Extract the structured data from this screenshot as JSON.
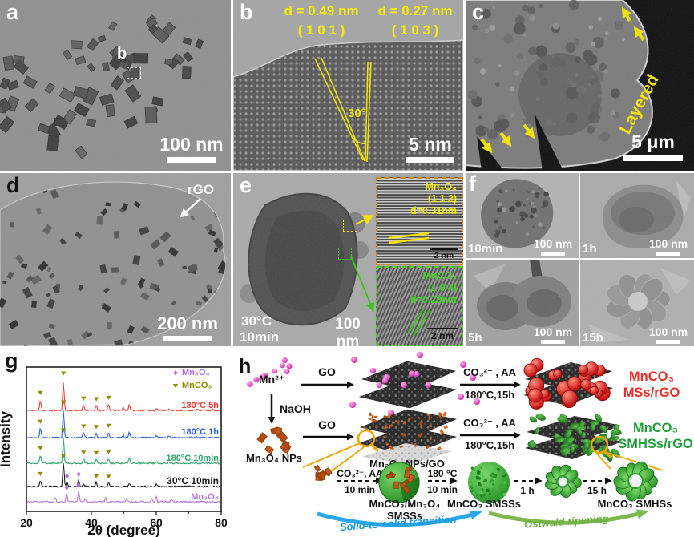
{
  "panels": {
    "a": {
      "label": "a",
      "box_label": "b",
      "scale": "100 nm"
    },
    "b": {
      "label": "b",
      "d1": "d = 0.49 nm",
      "plane1": "( 1 0 1 )",
      "d2": "d = 0.27 nm",
      "plane2": "( 1 0 3 )",
      "angle": "30°",
      "scale": "5 nm"
    },
    "c": {
      "label": "c",
      "layered": "Layered",
      "scale": "5 μm"
    },
    "d": {
      "label": "d",
      "rgo": "rGO",
      "scale": "200 nm"
    },
    "e": {
      "label": "e",
      "temp": "30°C",
      "time": "10min",
      "scale": "100 nm",
      "inset_top": {
        "name": "Mn₃O₄",
        "plane": "(1 1 2)",
        "d": "d=0.31nm",
        "scale": "2 nm"
      },
      "inset_bottom": {
        "name": "MnCO₃",
        "plane": "(1 0 4)",
        "d": "d=0.28nm",
        "scale": "2 nm"
      }
    },
    "f": {
      "label": "f",
      "tiles": [
        {
          "time": "10min",
          "scale": "100 nm"
        },
        {
          "time": "1h",
          "scale": "100 nm"
        },
        {
          "time": "5h",
          "scale": "100 nm"
        },
        {
          "time": "15h",
          "scale": "100 nm"
        }
      ]
    },
    "g": {
      "label": "g"
    },
    "h": {
      "label": "h",
      "mn_ion": "Mn²⁺",
      "go1": "GO",
      "go2": "GO",
      "naoh": "NaOH",
      "nps": "Mn₃O₄ NPs",
      "nps_go": "Mn₃O₄ NPs/GO",
      "arrow_top": {
        "l1": "CO₃²⁻ , AA",
        "l2": "180°C,15h"
      },
      "arrow_mid": {
        "l1": "CO₃²⁻ , AA",
        "l2": "180°C,15h"
      },
      "product_top": {
        "l1": "MnCO₃",
        "l2": "MSs/rGO"
      },
      "product_mid": {
        "l1": "MnCO₃",
        "l2": "SMHSs/rGO"
      },
      "step1": {
        "l1": "CO₃²⁻, AA",
        "l2": "10 min"
      },
      "step2": {
        "l1": "180 °C",
        "l2": "10 min"
      },
      "step3": "1 h",
      "step4": "15 h",
      "mix_label": {
        "l1": "MnCO₃/Mn₃O₄",
        "l2": "SMSSs"
      },
      "smsss": "MnCO₃ SMSSs",
      "smhss": "MnCO₃ SMHSs",
      "transition_blue": "Solid-to-solid transition",
      "transition_green": "Ostwald ripening"
    }
  },
  "colors": {
    "annotation_yellow": "#f5e400",
    "red_product": "#e8302a",
    "green_product": "#21a03c",
    "solid_transition_arrow": "#2aa7e8",
    "ostwald_arrow": "#7cb84e",
    "mn_ion_pink": "#d020b0",
    "mn3o4_np_orange": "#c2571a",
    "mnco3_sphere_red": "#bd0000",
    "mnco3_particle_green": "#1d8a1d",
    "inset_top_border": "#cc8a00",
    "inset_bottom_border": "#46d41e"
  },
  "chart_data": {
    "type": "line",
    "title": "",
    "xlabel": "2θ (degree)",
    "ylabel": "Intensity",
    "xlim": [
      20,
      80
    ],
    "xticks": [
      20,
      40,
      60,
      80
    ],
    "grid": false,
    "legend_position": "top-right",
    "legend": [
      {
        "label": "Mn₃O₄",
        "marker": "diamond",
        "color": "#b36bdf"
      },
      {
        "label": "MnCO₃",
        "marker": "triangle-down",
        "color": "#8f8a00"
      }
    ],
    "series": [
      {
        "name": "180°C 5h",
        "color": "#ee3b30",
        "peaks": [
          [
            24.3,
            0.38
          ],
          [
            31.4,
            1.0
          ],
          [
            37.6,
            0.2
          ],
          [
            41.5,
            0.18
          ],
          [
            45.3,
            0.22
          ],
          [
            49.8,
            0.1
          ],
          [
            51.7,
            0.22
          ],
          [
            60.1,
            0.08
          ],
          [
            63.9,
            0.07
          ],
          [
            72.6,
            0.05
          ],
          [
            77.3,
            0.05
          ]
        ],
        "markers_mnco3": [
          24.3,
          31.4,
          37.6,
          41.5,
          45.3
        ]
      },
      {
        "name": "180°C 1h",
        "color": "#2d5fdd",
        "peaks": [
          [
            24.3,
            0.33
          ],
          [
            31.4,
            0.95
          ],
          [
            37.6,
            0.18
          ],
          [
            41.5,
            0.16
          ],
          [
            45.3,
            0.2
          ],
          [
            49.8,
            0.08
          ],
          [
            51.7,
            0.2
          ],
          [
            60.1,
            0.07
          ],
          [
            63.9,
            0.06
          ],
          [
            72.6,
            0.04
          ]
        ],
        "markers_mnco3": [
          24.3,
          31.4,
          37.6,
          41.5,
          45.3
        ]
      },
      {
        "name": "180°C 10min",
        "color": "#2fa569",
        "peaks": [
          [
            24.3,
            0.3
          ],
          [
            31.4,
            0.88
          ],
          [
            37.6,
            0.16
          ],
          [
            41.5,
            0.15
          ],
          [
            45.3,
            0.18
          ],
          [
            51.7,
            0.18
          ],
          [
            60.1,
            0.06
          ],
          [
            63.9,
            0.05
          ]
        ],
        "markers_mnco3": [
          24.3,
          31.4,
          37.6,
          41.5,
          45.3
        ]
      },
      {
        "name": "30°C 10min",
        "color": "#1a1a1a",
        "peaks": [
          [
            24.3,
            0.22
          ],
          [
            31.4,
            0.8
          ],
          [
            32.5,
            0.16
          ],
          [
            36.1,
            0.22
          ],
          [
            37.6,
            0.08
          ],
          [
            41.5,
            0.15
          ],
          [
            45.3,
            0.13
          ],
          [
            51.7,
            0.12
          ],
          [
            60.0,
            0.07
          ]
        ],
        "markers_mnco3": [
          24.3,
          31.4,
          41.5,
          45.3
        ],
        "markers_mn3o4": [
          32.5,
          36.1
        ]
      },
      {
        "name": "Mn₃O₄",
        "color": "#b678e0",
        "peaks": [
          [
            28.9,
            0.13
          ],
          [
            32.4,
            0.28
          ],
          [
            36.1,
            0.36
          ],
          [
            38.1,
            0.1
          ],
          [
            44.4,
            0.13
          ],
          [
            50.9,
            0.1
          ],
          [
            58.6,
            0.1
          ],
          [
            60.0,
            0.16
          ],
          [
            64.7,
            0.1
          ]
        ],
        "markers_mn3o4": [
          32.4,
          36.1
        ]
      }
    ]
  }
}
